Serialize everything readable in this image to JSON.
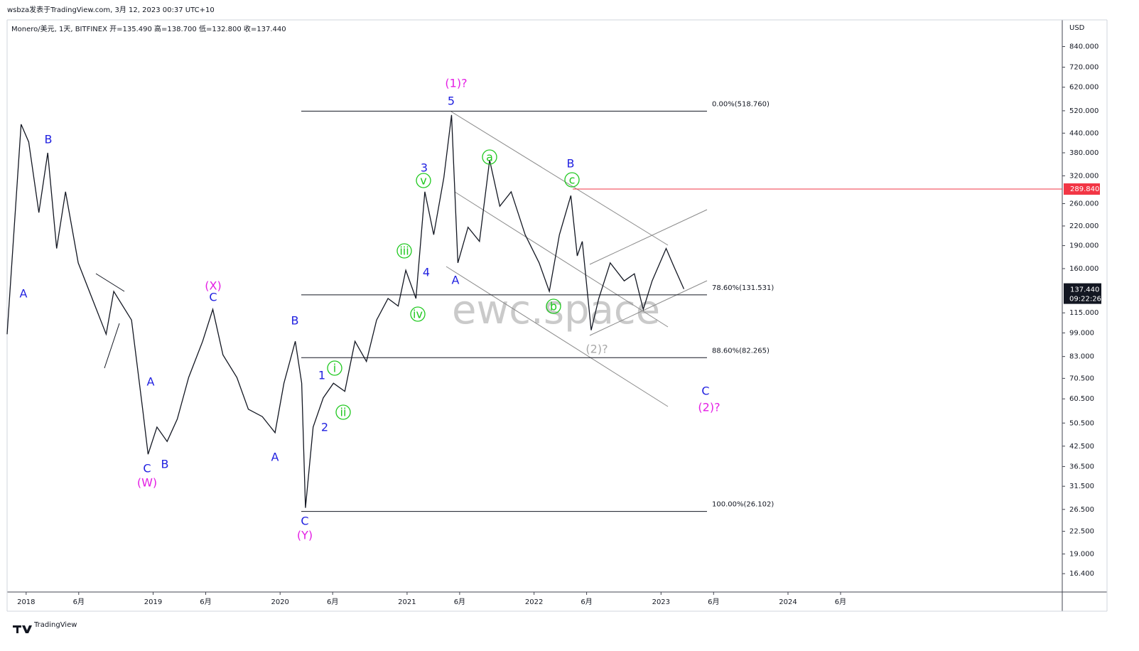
{
  "chart_data": {
    "type": "line",
    "header": "wsbza发表于TradingView.com, 3月 12, 2023 00:37 UTC+10",
    "symbol_info": "Monero/美元, 1天, BITFINEX 开=135.490 高=138.700 低=132.800 收=137.440",
    "unit": "USD",
    "watermark": "ewc.space",
    "brand": "TradingView",
    "log_scale": true,
    "color": "#131722",
    "xlim": [
      2017.85,
      2026.16
    ],
    "xticks": [
      2018,
      {
        "value": 2018.414,
        "label": "6月"
      },
      2019,
      {
        "value": 2019.414,
        "label": "6月"
      },
      2020,
      {
        "value": 2020.414,
        "label": "6月"
      },
      2021,
      {
        "value": 2021.414,
        "label": "6月"
      },
      2022,
      {
        "value": 2022.414,
        "label": "6月"
      },
      2023,
      {
        "value": 2023.414,
        "label": "6月"
      },
      2024,
      {
        "value": 2024.414,
        "label": "6月"
      }
    ],
    "ylim": [
      14.3,
      1025
    ],
    "yticks": [
      {
        "value": 840,
        "label": "840.000"
      },
      {
        "value": 720,
        "label": "720.000"
      },
      {
        "value": 620,
        "label": "620.000"
      },
      {
        "value": 520,
        "label": "520.000"
      },
      {
        "value": 440,
        "label": "440.000"
      },
      {
        "value": 380,
        "label": "380.000"
      },
      {
        "value": 320,
        "label": "320.000"
      },
      {
        "value": 260,
        "label": "260.000"
      },
      {
        "value": 220,
        "label": "220.000"
      },
      {
        "value": 190,
        "label": "190.000"
      },
      {
        "value": 160,
        "label": "160.000"
      },
      {
        "value": 115,
        "label": "115.000"
      },
      {
        "value": 99,
        "label": "99.000"
      },
      {
        "value": 83,
        "label": "83.000"
      },
      {
        "value": 70.5,
        "label": "70.500"
      },
      {
        "value": 60.5,
        "label": "60.500"
      },
      {
        "value": 50.5,
        "label": "50.500"
      },
      {
        "value": 42.5,
        "label": "42.500"
      },
      {
        "value": 36.5,
        "label": "36.500"
      },
      {
        "value": 31.5,
        "label": "31.500"
      },
      {
        "value": 26.5,
        "label": "26.500"
      },
      {
        "value": 22.5,
        "label": "22.500"
      },
      {
        "value": 19,
        "label": "19.000"
      },
      {
        "value": 16.4,
        "label": "16.400"
      }
    ],
    "x": [
      2017.85,
      2017.96,
      2018.02,
      2018.1,
      2018.17,
      2018.24,
      2018.31,
      2018.41,
      2018.52,
      2018.63,
      2018.69,
      2018.83,
      2018.92,
      2018.96,
      2019.03,
      2019.11,
      2019.19,
      2019.28,
      2019.39,
      2019.47,
      2019.55,
      2019.66,
      2019.75,
      2019.86,
      2019.96,
      2020.03,
      2020.12,
      2020.17,
      2020.2,
      2020.26,
      2020.34,
      2020.42,
      2020.51,
      2020.59,
      2020.68,
      2020.76,
      2020.85,
      2020.93,
      2020.99,
      2021.07,
      2021.14,
      2021.21,
      2021.29,
      2021.35,
      2021.4,
      2021.48,
      2021.57,
      2021.65,
      2021.73,
      2021.82,
      2021.93,
      2022.04,
      2022.12,
      2022.2,
      2022.29,
      2022.34,
      2022.38,
      2022.45,
      2022.51,
      2022.6,
      2022.71,
      2022.79,
      2022.86,
      2022.93,
      2023.04,
      2023.1,
      2023.18
    ],
    "values": [
      98,
      470,
      412,
      243,
      380,
      186,
      284,
      167,
      128,
      98,
      135,
      109,
      55,
      40,
      49,
      44,
      52,
      71,
      93,
      118,
      84,
      71,
      56,
      53,
      47,
      68,
      93,
      68,
      26.8,
      49,
      61,
      68,
      64,
      93,
      80,
      109,
      128,
      121,
      158,
      128,
      284,
      206,
      316,
      504,
      167,
      218,
      196,
      360,
      255,
      284,
      206,
      167,
      135,
      206,
      276,
      176,
      196,
      101,
      128,
      167,
      146,
      154,
      118,
      146,
      186,
      163,
      137.44
    ],
    "fib_levels": [
      {
        "value": 518.76,
        "label": "0.00%(518.760)"
      },
      {
        "value": 131.531,
        "label": "78.60%(131.531)"
      },
      {
        "value": 82.265,
        "label": "88.60%(82.265)"
      },
      {
        "value": 26.102,
        "label": "100.00%(26.102)"
      }
    ],
    "price_line": {
      "value": 289.84,
      "label": "289.840",
      "color": "#f23645"
    },
    "last_price": {
      "value": 137.44,
      "label": "137.440",
      "countdown": "09:22:26"
    },
    "annotations": [
      {
        "text": "A",
        "color": "#2121e0"
      },
      {
        "text": "B",
        "color": "#2121e0"
      },
      {
        "text": "A",
        "color": "#2121e0"
      },
      {
        "text": "C",
        "color": "#2121e0"
      },
      {
        "text": "B",
        "color": "#2121e0"
      },
      {
        "text": "C",
        "color": "#2121e0"
      },
      {
        "text": "B",
        "color": "#2121e0"
      },
      {
        "text": "A",
        "color": "#2121e0"
      },
      {
        "text": "C",
        "color": "#2121e0"
      },
      {
        "text": "1",
        "color": "#2121e0"
      },
      {
        "text": "2",
        "color": "#2121e0"
      },
      {
        "text": "3",
        "color": "#2121e0"
      },
      {
        "text": "4",
        "color": "#2121e0"
      },
      {
        "text": "5",
        "color": "#2121e0"
      },
      {
        "text": "A",
        "color": "#2121e0"
      },
      {
        "text": "B",
        "color": "#2121e0"
      },
      {
        "text": "C",
        "color": "#2121e0"
      },
      {
        "text": "(X)",
        "color": "#e41ee4"
      },
      {
        "text": "(W)",
        "color": "#e41ee4"
      },
      {
        "text": "(Y)",
        "color": "#e41ee4"
      },
      {
        "text": "(1)?",
        "color": "#e41ee4"
      },
      {
        "text": "(2)?",
        "color": "#e41ee4"
      },
      {
        "text": "i",
        "color": "#1ec81e",
        "circled": true
      },
      {
        "text": "ii",
        "color": "#1ec81e",
        "circled": true
      },
      {
        "text": "iii",
        "color": "#1ec81e",
        "circled": true
      },
      {
        "text": "iv",
        "color": "#1ec81e",
        "circled": true
      },
      {
        "text": "v",
        "color": "#1ec81e",
        "circled": true
      },
      {
        "text": "a",
        "color": "#1ec81e",
        "circled": true
      },
      {
        "text": "b",
        "color": "#1ec81e",
        "circled": true
      },
      {
        "text": "c",
        "color": "#1ec81e",
        "circled": true
      },
      {
        "text": "(2)?",
        "color": "#a8a8a8"
      }
    ]
  }
}
